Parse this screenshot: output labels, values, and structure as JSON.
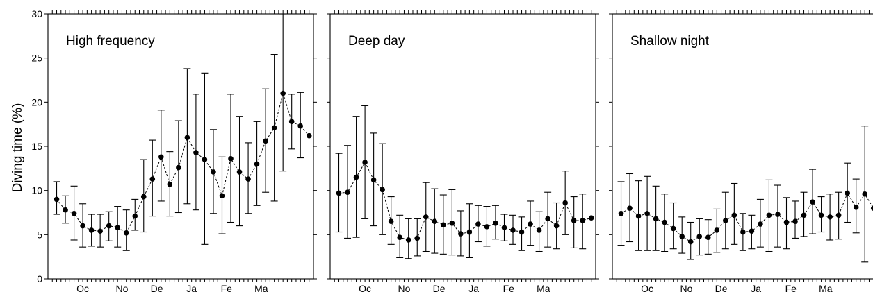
{
  "ylabel": "Diving time (%)",
  "chart_data": [
    {
      "type": "line",
      "title": "High frequency",
      "ylabel": "Diving time (%)",
      "ylim": [
        0,
        30
      ],
      "yticks": [
        0,
        5,
        10,
        15,
        20,
        25,
        30
      ],
      "xlim": [
        0,
        30.5
      ],
      "xtick_labels": [
        {
          "label": "Oc",
          "x": 4
        },
        {
          "label": "No",
          "x": 8.5
        },
        {
          "label": "De",
          "x": 12.5
        },
        {
          "label": "Ja",
          "x": 16.5
        },
        {
          "label": "Fe",
          "x": 20.5
        },
        {
          "label": "Ma",
          "x": 24.5
        }
      ],
      "grid": false,
      "errorbars": true,
      "x": [
        1,
        2,
        3,
        4,
        5,
        6,
        7,
        8,
        9,
        10,
        11,
        12,
        13,
        14,
        15,
        16,
        17,
        18,
        19,
        20,
        21,
        22,
        23,
        24,
        25,
        26,
        27,
        28,
        29,
        30
      ],
      "y": [
        9.0,
        7.8,
        7.4,
        6.0,
        5.5,
        5.4,
        6.0,
        5.8,
        5.2,
        7.1,
        9.3,
        11.3,
        13.8,
        10.7,
        12.6,
        16.0,
        14.3,
        13.5,
        12.1,
        9.4,
        13.6,
        12.1,
        11.3,
        13.0,
        15.6,
        17.1,
        21.0,
        17.8,
        17.3,
        16.2
      ],
      "lower": [
        7.3,
        6.3,
        4.4,
        3.6,
        3.7,
        3.6,
        4.3,
        3.6,
        3.2,
        5.5,
        5.3,
        7.1,
        8.8,
        7.1,
        7.5,
        8.5,
        7.8,
        3.9,
        7.4,
        5.1,
        6.4,
        6.0,
        7.4,
        8.3,
        9.8,
        8.8,
        12.2,
        14.7,
        13.7,
        null
      ],
      "upper": [
        11.0,
        9.4,
        10.5,
        8.5,
        7.3,
        7.3,
        7.6,
        8.2,
        7.8,
        9.0,
        13.5,
        15.7,
        19.1,
        14.4,
        17.9,
        23.8,
        20.9,
        23.3,
        16.9,
        13.8,
        20.9,
        18.4,
        15.4,
        17.8,
        21.5,
        25.4,
        30.0,
        20.9,
        21.1,
        null
      ]
    },
    {
      "type": "line",
      "title": "Deep day",
      "ylim": [
        0,
        30
      ],
      "xlim": [
        0,
        30.5
      ],
      "xtick_labels": [
        {
          "label": "Oc",
          "x": 4
        },
        {
          "label": "No",
          "x": 8.5
        },
        {
          "label": "De",
          "x": 12.5
        },
        {
          "label": "Ja",
          "x": 16.5
        },
        {
          "label": "Fe",
          "x": 20.5
        },
        {
          "label": "Ma",
          "x": 24.5
        }
      ],
      "grid": false,
      "errorbars": true,
      "x": [
        1,
        2,
        3,
        4,
        5,
        6,
        7,
        8,
        9,
        10,
        11,
        12,
        13,
        14,
        15,
        16,
        17,
        18,
        19,
        20,
        21,
        22,
        23,
        24,
        25,
        26,
        27,
        28,
        29,
        30
      ],
      "y": [
        9.7,
        9.8,
        11.5,
        13.2,
        11.2,
        10.1,
        6.5,
        4.7,
        4.4,
        4.6,
        7.0,
        6.5,
        6.1,
        6.3,
        5.1,
        5.3,
        6.2,
        5.9,
        6.3,
        5.8,
        5.5,
        5.3,
        6.2,
        5.5,
        6.8,
        6.0,
        8.6,
        6.6,
        6.6,
        6.9
      ],
      "lower": [
        5.3,
        4.6,
        4.7,
        6.8,
        6.0,
        5.0,
        3.9,
        2.4,
        2.3,
        2.6,
        3.1,
        2.9,
        2.8,
        2.7,
        2.6,
        2.4,
        4.2,
        3.7,
        4.5,
        4.3,
        3.9,
        3.2,
        3.8,
        3.1,
        3.6,
        3.4,
        5.0,
        3.5,
        3.4,
        null
      ],
      "upper": [
        14.2,
        15.1,
        18.4,
        19.6,
        16.5,
        15.3,
        9.3,
        7.2,
        6.8,
        6.8,
        10.9,
        10.2,
        9.5,
        10.1,
        7.7,
        8.5,
        8.3,
        8.2,
        8.3,
        7.3,
        7.2,
        7.0,
        8.8,
        7.6,
        9.8,
        8.6,
        12.2,
        9.3,
        9.6,
        null
      ]
    },
    {
      "type": "line",
      "title": "Shallow night",
      "ylim": [
        0,
        30
      ],
      "xlim": [
        0,
        30.5
      ],
      "xtick_labels": [
        {
          "label": "Oc",
          "x": 4
        },
        {
          "label": "No",
          "x": 8.5
        },
        {
          "label": "De",
          "x": 12.5
        },
        {
          "label": "Ja",
          "x": 16.5
        },
        {
          "label": "Fe",
          "x": 20.5
        },
        {
          "label": "Ma",
          "x": 24.5
        }
      ],
      "grid": false,
      "errorbars": true,
      "x": [
        1,
        2,
        3,
        4,
        5,
        6,
        7,
        8,
        9,
        10,
        11,
        12,
        13,
        14,
        15,
        16,
        17,
        18,
        19,
        20,
        21,
        22,
        23,
        24,
        25,
        26,
        27,
        28,
        29,
        30
      ],
      "y": [
        7.4,
        8.0,
        7.1,
        7.4,
        6.8,
        6.4,
        5.7,
        4.8,
        4.2,
        4.8,
        4.7,
        5.5,
        6.6,
        7.2,
        5.3,
        5.4,
        6.2,
        7.2,
        7.3,
        6.4,
        6.5,
        7.2,
        8.7,
        7.2,
        7.0,
        7.2,
        9.7,
        8.1,
        9.6,
        8.0
      ],
      "lower": [
        3.8,
        4.2,
        3.2,
        3.2,
        3.2,
        3.1,
        3.4,
        2.9,
        2.2,
        2.7,
        2.8,
        3.0,
        3.4,
        3.9,
        3.2,
        3.4,
        3.6,
        3.1,
        3.6,
        3.4,
        4.6,
        4.8,
        5.1,
        5.3,
        4.4,
        4.5,
        6.4,
        5.2,
        1.9,
        null
      ],
      "upper": [
        11.0,
        11.9,
        11.1,
        11.6,
        10.5,
        9.6,
        8.6,
        7.0,
        6.4,
        6.8,
        6.7,
        7.9,
        9.8,
        10.8,
        7.4,
        7.2,
        9.0,
        11.2,
        10.6,
        9.2,
        8.8,
        9.8,
        12.4,
        9.3,
        9.6,
        9.8,
        13.1,
        11.3,
        17.3,
        null
      ]
    }
  ]
}
